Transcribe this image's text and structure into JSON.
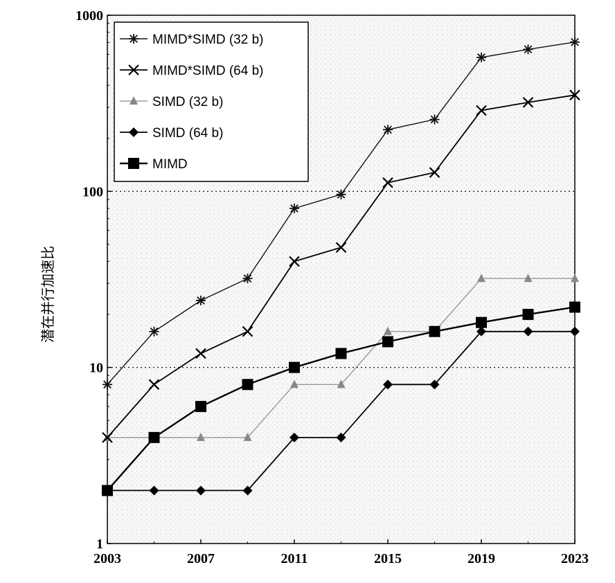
{
  "chart_data": {
    "type": "line",
    "title": "",
    "xlabel": "",
    "ylabel": "潜在并行加速比",
    "y_scale": "log",
    "xlim": [
      2003,
      2023
    ],
    "ylim": [
      1,
      1000
    ],
    "x_ticks": [
      "2003",
      "2007",
      "2011",
      "2015",
      "2019",
      "2023"
    ],
    "y_ticks": [
      "1",
      "10",
      "100",
      "1000"
    ],
    "grid": "dotted horizontal at 10 and 100",
    "legend_position": "top-left",
    "x": [
      2003,
      2005,
      2007,
      2009,
      2011,
      2013,
      2015,
      2017,
      2019,
      2021,
      2023
    ],
    "series": [
      {
        "name": "MIMD*SIMD (32 b)",
        "marker": "asterisk",
        "color": "#111111",
        "values": [
          8,
          16,
          24,
          32,
          80,
          96,
          224,
          256,
          576,
          640,
          704
        ]
      },
      {
        "name": "MIMD*SIMD (64 b)",
        "marker": "x",
        "color": "#000000",
        "values": [
          4,
          8,
          12,
          16,
          40,
          48,
          112,
          128,
          288,
          320,
          352
        ]
      },
      {
        "name": "SIMD (32 b)",
        "marker": "triangle",
        "color": "#888888",
        "values": [
          4,
          4,
          4,
          4,
          8,
          8,
          16,
          16,
          32,
          32,
          32
        ]
      },
      {
        "name": "SIMD (64 b)",
        "marker": "diamond",
        "color": "#000000",
        "values": [
          2,
          2,
          2,
          2,
          4,
          4,
          8,
          8,
          16,
          16,
          16
        ]
      },
      {
        "name": "MIMD",
        "marker": "square",
        "color": "#000000",
        "values": [
          2,
          4,
          6,
          8,
          10,
          12,
          14,
          16,
          18,
          20,
          22
        ]
      }
    ]
  }
}
